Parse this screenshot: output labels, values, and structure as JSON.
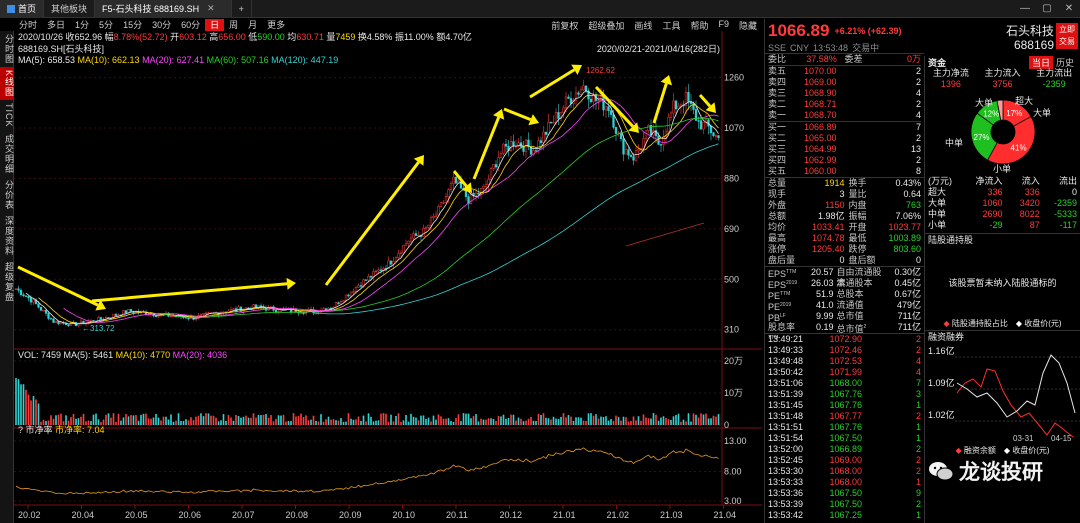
{
  "window": {
    "tabs": [
      {
        "label": "首页"
      },
      {
        "label": "其他板块"
      },
      {
        "label": "F5-石头科技 688169.SH"
      }
    ],
    "add_tab": "+"
  },
  "periods": [
    "分时",
    "多日",
    "1分",
    "5分",
    "15分",
    "30分",
    "60分",
    "日",
    "周",
    "月",
    "更多"
  ],
  "active_period": "日",
  "tools": [
    "前复权",
    "超级叠加",
    "画线",
    "工具",
    "帮助",
    "F9",
    "隐藏"
  ],
  "left_tabs": [
    "分时图",
    "K线图",
    "TICK",
    "成交明细",
    "分价表",
    "深度资料",
    "超级复盘"
  ],
  "info_line": {
    "date": "2020/10/26",
    "items": [
      {
        "label": "收",
        "value": "652.96",
        "color": "#e8e8e8"
      },
      {
        "label": "幅",
        "value": "8.78%(52.72)",
        "color": "#ff3b3b"
      },
      {
        "label": "开",
        "value": "603.12",
        "color": "#ff3b3b"
      },
      {
        "label": "高",
        "value": "656.00",
        "color": "#ff3b3b"
      },
      {
        "label": "低",
        "value": "590.00",
        "color": "#27d127"
      },
      {
        "label": "均",
        "value": "630.71",
        "color": "#ff3b3b"
      },
      {
        "label": "量",
        "value": "7459",
        "color": "#ffd800"
      },
      {
        "label": "换",
        "value": "4.58%",
        "color": "#e8e8e8"
      },
      {
        "label": "振",
        "value": "11.00%",
        "color": "#e8e8e8"
      },
      {
        "label": "额",
        "value": "4.70亿",
        "color": "#e8e8e8"
      }
    ]
  },
  "stock_label": "688169.SH[石头科技]",
  "ma_legend": [
    {
      "text": "MA(5): 658.53",
      "color": "#e8e8e8"
    },
    {
      "text": "MA(10): 662.13",
      "color": "#ffd800"
    },
    {
      "text": "MA(20): 627.41",
      "color": "#ff44ff"
    },
    {
      "text": "MA(60): 507.16",
      "color": "#27d127"
    },
    {
      "text": "MA(120): 447.19",
      "color": "#2fd3d3"
    }
  ],
  "date_range": "2020/02/21-2021/04/16(282日)",
  "price_axis": [
    "1260",
    "1070",
    "880",
    "690",
    "500",
    "310"
  ],
  "high_label": "1262.62",
  "low_label": "313.72",
  "vol_legend": [
    {
      "text": "VOL: 7459",
      "color": "#e8e8e8"
    },
    {
      "text": "MA(5): 5461",
      "color": "#e8e8e8"
    },
    {
      "text": "MA(10): 4770",
      "color": "#ffd800"
    },
    {
      "text": "MA(20): 4036",
      "color": "#ff44ff"
    }
  ],
  "vol_axis": [
    "20万",
    "10万",
    "0"
  ],
  "pe_legend": [
    {
      "text": "市净率",
      "color": "#e8e8e8"
    },
    {
      "text": "市净率: 7.04",
      "color": "#ffd800"
    }
  ],
  "pe_axis": [
    "13.00",
    "8.00",
    "3.00"
  ],
  "x_axis": [
    "20.02",
    "20.04",
    "20.05",
    "20.06",
    "20.07",
    "20.08",
    "20.09",
    "20.10",
    "20.11",
    "20.12",
    "21.01",
    "21.02",
    "21.03",
    "21.04"
  ],
  "quote": {
    "price": "1066.89",
    "change": "+6.21% (+62.39)",
    "name": "石头科技",
    "code": "688169",
    "trade_button": "立即交易",
    "meta": [
      "SSE",
      "CNY",
      "13:53:48",
      "交易中"
    ],
    "commission": {
      "label": "委比",
      "value": "37.58%",
      "label2": "委差",
      "value2": "0万"
    },
    "asks": [
      {
        "label": "卖五",
        "price": "1070.00",
        "vol": "2"
      },
      {
        "label": "卖四",
        "price": "1069.00",
        "vol": "2"
      },
      {
        "label": "卖三",
        "price": "1068.90",
        "vol": "4"
      },
      {
        "label": "卖二",
        "price": "1068.71",
        "vol": "2"
      },
      {
        "label": "卖一",
        "price": "1068.70",
        "vol": "4"
      }
    ],
    "bids": [
      {
        "label": "买一",
        "price": "1066.89",
        "vol": "7"
      },
      {
        "label": "买二",
        "price": "1065.00",
        "vol": "2"
      },
      {
        "label": "买三",
        "price": "1064.99",
        "vol": "13"
      },
      {
        "label": "买四",
        "price": "1062.99",
        "vol": "2"
      },
      {
        "label": "买五",
        "price": "1060.00",
        "vol": "8"
      }
    ],
    "stats": [
      {
        "l1": "总量",
        "v1": "1914",
        "c1": "#ffd800",
        "l2": "换手",
        "v2": "0.43%",
        "c2": "#e8e8e8"
      },
      {
        "l1": "现手",
        "v1": "3",
        "c1": "#e8e8e8",
        "l2": "量比",
        "v2": "0.64",
        "c2": "#e8e8e8"
      },
      {
        "l1": "外盘",
        "v1": "1150",
        "c1": "#ff3b3b",
        "l2": "内盘",
        "v2": "763",
        "c2": "#27d127"
      },
      {
        "l1": "总额",
        "v1": "1.98亿",
        "c1": "#e8e8e8",
        "l2": "振幅",
        "v2": "7.06%",
        "c2": "#e8e8e8"
      },
      {
        "l1": "均价",
        "v1": "1033.41",
        "c1": "#ff3b3b",
        "l2": "开盘",
        "v2": "1023.77",
        "c2": "#ff3b3b"
      },
      {
        "l1": "最高",
        "v1": "1074.78",
        "c1": "#ff3b3b",
        "l2": "最低",
        "v2": "1003.89",
        "c2": "#27d127"
      },
      {
        "l1": "涨停",
        "v1": "1205.40",
        "c1": "#ff3b3b",
        "l2": "跌停",
        "v2": "803.60",
        "c2": "#27d127"
      },
      {
        "l1": "盘后量",
        "v1": "0",
        "c1": "#e8e8e8",
        "l2": "盘后额",
        "v2": "0",
        "c2": "#e8e8e8"
      }
    ],
    "fundamentals": [
      {
        "l1": "EPS",
        "s1": "TTM",
        "v1": "20.57",
        "l2": "自由流通股本",
        "v2": "0.30亿"
      },
      {
        "l1": "EPS",
        "s1": "2019",
        "v1": "26.03",
        "l2": "流通股本",
        "v2": "0.45亿"
      },
      {
        "l1": "PE",
        "s1": "TTM",
        "v1": "51.9",
        "l2": "总股本",
        "v2": "0.67亿"
      },
      {
        "l1": "PE",
        "s1": "2019",
        "v1": "41.0",
        "l2": "流通值",
        "v2": "479亿"
      },
      {
        "l1": "PB",
        "s1": "LF",
        "v1": "9.99",
        "l2": "总市值",
        "v2": "711亿"
      },
      {
        "l1": "股息率",
        "s1": "TTM",
        "v1": "0.19",
        "l2": "总市值",
        "s2": "2",
        "v2": "711亿"
      }
    ],
    "ticks": [
      {
        "time": "13:49:21",
        "price": "1072.90",
        "vol": "2",
        "dir": "up"
      },
      {
        "time": "13:49:33",
        "price": "1072.46",
        "vol": "2",
        "dir": "up"
      },
      {
        "time": "13:49:48",
        "price": "1072.53",
        "vol": "4",
        "dir": "up"
      },
      {
        "time": "13:50:42",
        "price": "1071.99",
        "vol": "4",
        "dir": "up"
      },
      {
        "time": "13:51:06",
        "price": "1068.00",
        "vol": "7",
        "dir": "down"
      },
      {
        "time": "13:51:39",
        "price": "1067.76",
        "vol": "3",
        "dir": "down"
      },
      {
        "time": "13:51:45",
        "price": "1067.76",
        "vol": "1",
        "dir": "down"
      },
      {
        "time": "13:51:48",
        "price": "1067.77",
        "vol": "2",
        "dir": "up"
      },
      {
        "time": "13:51:51",
        "price": "1067.76",
        "vol": "1",
        "dir": "down"
      },
      {
        "time": "13:51:54",
        "price": "1067.50",
        "vol": "1",
        "dir": "down"
      },
      {
        "time": "13:52:00",
        "price": "1066.89",
        "vol": "2",
        "dir": "down"
      },
      {
        "time": "13:52:45",
        "price": "1069.00",
        "vol": "2",
        "dir": "up"
      },
      {
        "time": "13:53:30",
        "price": "1068.00",
        "vol": "2",
        "dir": "up"
      },
      {
        "time": "13:53:33",
        "price": "1068.00",
        "vol": "1",
        "dir": "up"
      },
      {
        "time": "13:53:36",
        "price": "1067.50",
        "vol": "9",
        "dir": "down"
      },
      {
        "time": "13:53:39",
        "price": "1067.50",
        "vol": "2",
        "dir": "down"
      },
      {
        "time": "13:53:42",
        "price": "1067.25",
        "vol": "1",
        "dir": "down"
      }
    ]
  },
  "side": {
    "title": "资金",
    "tabs": [
      "当日",
      "历史"
    ],
    "flow_header": [
      "主力净流",
      "主力流入",
      "主力流出"
    ],
    "flow_values": [
      "1396",
      "3756",
      "-2359"
    ],
    "pie_labels": {
      "large": "大单",
      "super": "超大",
      "mid": "中单",
      "small": "小单",
      "big2": "大单"
    },
    "pie": [
      {
        "name": "超大",
        "pct": 17,
        "label": "17%",
        "color": "#ff2d2d"
      },
      {
        "name": "大单",
        "pct": 41,
        "label": "41%",
        "color": "#ff2d2d"
      },
      {
        "name": "中单",
        "pct": 27,
        "label": "27%",
        "color": "#1fbf1f"
      },
      {
        "name": "小单",
        "pct": 12,
        "label": "12%",
        "color": "#1fbf1f"
      },
      {
        "name": "other",
        "pct": 3,
        "label": "",
        "color": "#ff9a9a"
      }
    ],
    "table_header": [
      "(万元)",
      "净流入",
      "流入",
      "流出"
    ],
    "table": [
      {
        "name": "超大",
        "net": "336",
        "in": "336",
        "out": "0"
      },
      {
        "name": "大单",
        "net": "1060",
        "in": "3420",
        "out": "-2359"
      },
      {
        "name": "中单",
        "net": "2690",
        "in": "8022",
        "out": "-5333"
      },
      {
        "name": "小单",
        "net": "-29",
        "in": "87",
        "out": "-117"
      }
    ],
    "hk_title": "陆股通持股",
    "hk_message": "该股票暂未纳入陆股通标的",
    "hk_legend": [
      "陆股通持股占比",
      "收盘价(元)"
    ],
    "margin_title": "融资融券",
    "margin_axis": [
      "1.16亿",
      "1.09亿",
      "1.02亿"
    ],
    "margin_x": [
      "03-31",
      "04-15"
    ],
    "margin_legend": [
      "融资余额",
      "收盘价(元)"
    ]
  },
  "watermark": "龙谈投研"
}
